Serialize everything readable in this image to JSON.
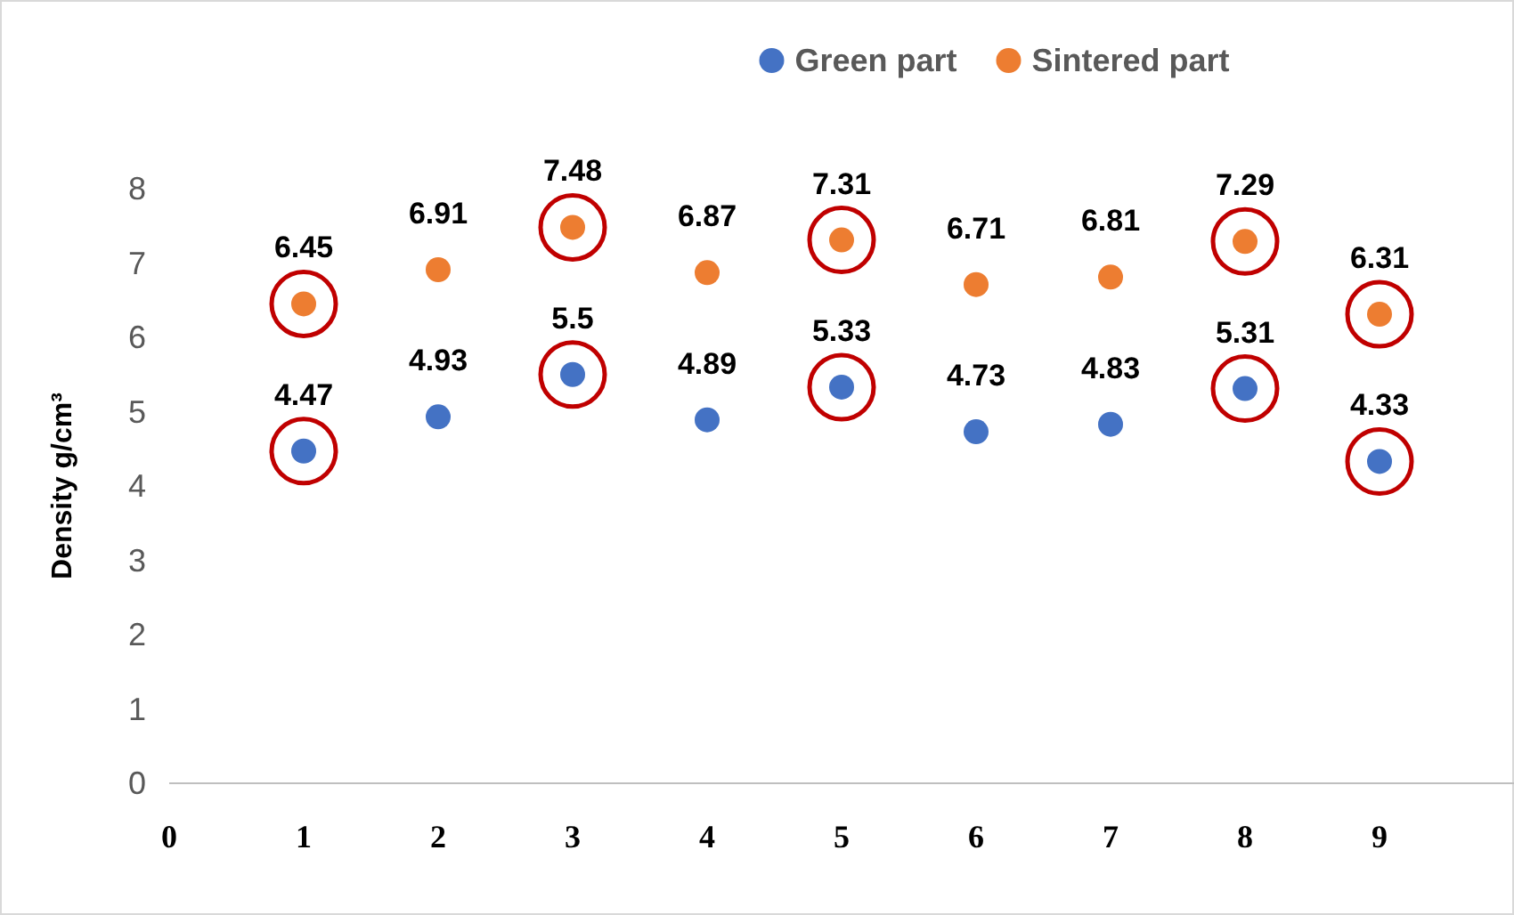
{
  "chart_data": {
    "type": "scatter",
    "ylabel": "Density g/cm³",
    "x": [
      1,
      2,
      3,
      4,
      5,
      6,
      7,
      8,
      9
    ],
    "series": [
      {
        "name": "Green part",
        "color": "#4472c4",
        "values": [
          4.47,
          4.93,
          5.5,
          4.89,
          5.33,
          4.73,
          4.83,
          5.31,
          4.33
        ]
      },
      {
        "name": "Sintered part",
        "color": "#ed7d31",
        "values": [
          6.45,
          6.91,
          7.48,
          6.87,
          7.31,
          6.71,
          6.81,
          7.29,
          6.31
        ]
      }
    ],
    "xlim": [
      0,
      10
    ],
    "xticks": [
      0,
      1,
      2,
      3,
      4,
      5,
      6,
      7,
      8,
      9
    ],
    "ylim": [
      0,
      8
    ],
    "yticks": [
      0,
      1,
      2,
      3,
      4,
      5,
      6,
      7,
      8
    ],
    "data_labels": true,
    "legend": "top",
    "marker": "circle",
    "grid": false
  }
}
